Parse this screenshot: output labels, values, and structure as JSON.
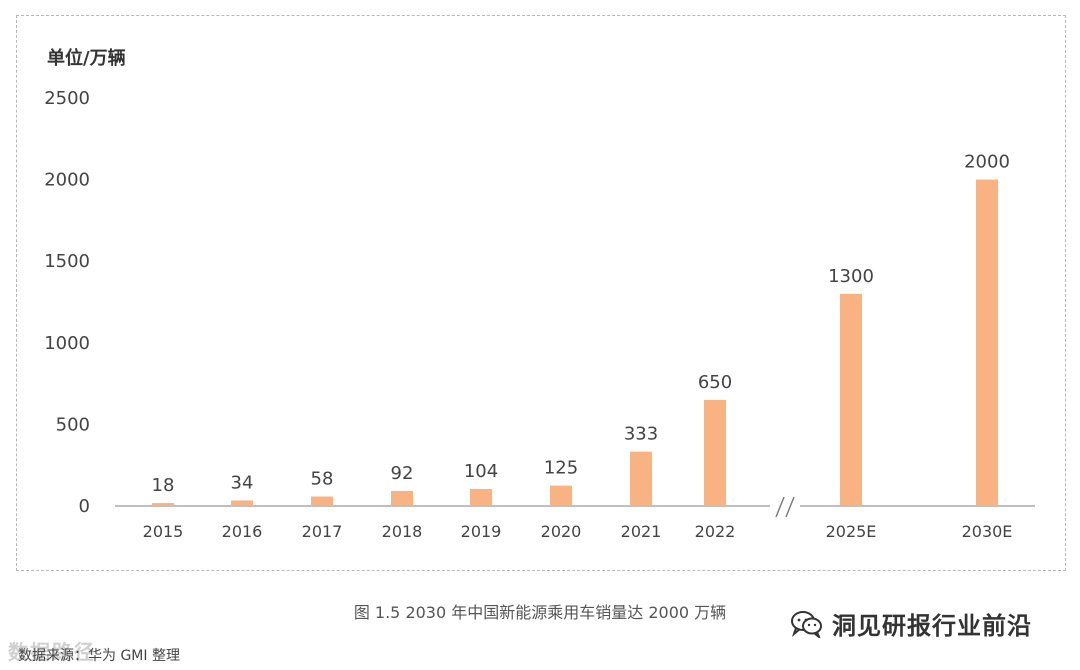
{
  "unit_label": "单位/万辆",
  "caption": "图 1.5 2030 年中国新能源乘用车销量达 2000 万辆",
  "brand": {
    "text": "洞见研报行业前沿",
    "icon": "wechat-icon"
  },
  "source": "数据来源：华为 GMI 整理",
  "watermark": "数据路径",
  "colors": {
    "bar": "#F9B282",
    "axis": "#999999",
    "text": "#444444"
  },
  "chart_data": {
    "type": "bar",
    "categories": [
      "2015",
      "2016",
      "2017",
      "2018",
      "2019",
      "2020",
      "2021",
      "2022",
      "2025E",
      "2030E"
    ],
    "values": [
      18,
      34,
      58,
      92,
      104,
      125,
      333,
      650,
      1300,
      2000
    ],
    "data_labels": [
      "18",
      "34",
      "58",
      "92",
      "104",
      "125",
      "333",
      "650",
      "1300",
      "2000"
    ],
    "ylabel": "单位/万辆",
    "ylim": [
      0,
      2500
    ],
    "yticks": [
      0,
      500,
      1000,
      1500,
      2000,
      2500
    ],
    "axis_break_between": [
      "2022",
      "2025E"
    ],
    "grid": false,
    "legend": "none"
  }
}
